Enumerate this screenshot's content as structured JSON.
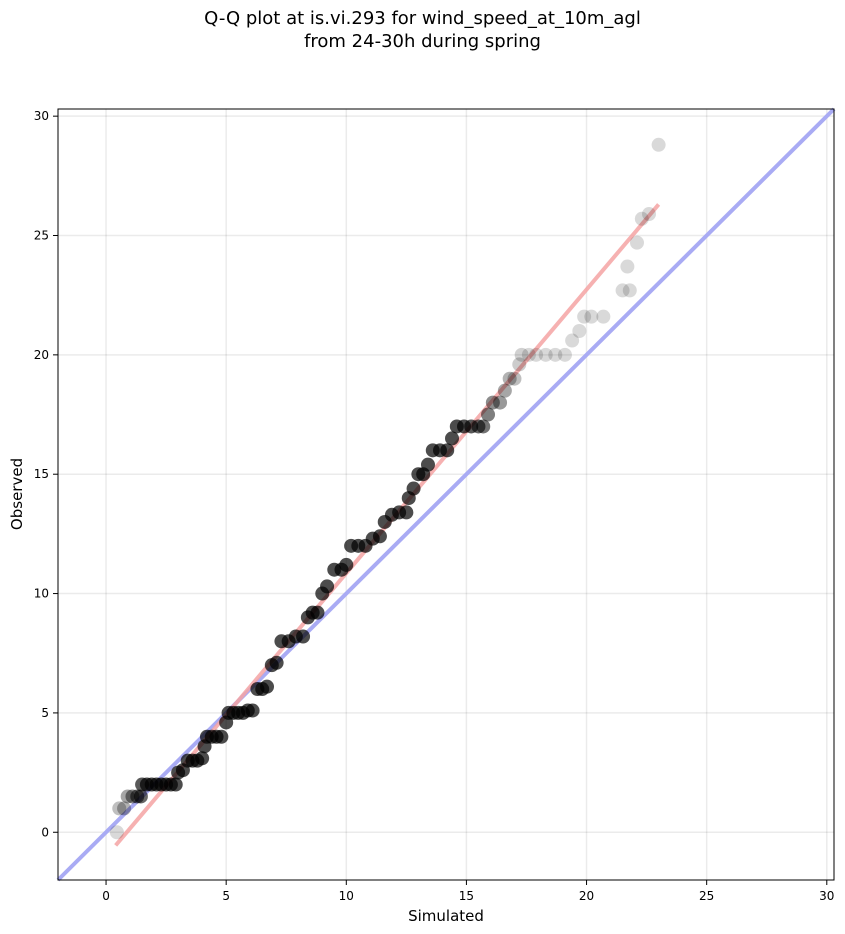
{
  "chart_data": {
    "type": "scatter",
    "title": "Q-Q plot at is.vi.293 for wind_speed_at_10m_agl",
    "subtitle": "from 24-30h during spring",
    "xlabel": "Simulated",
    "ylabel": "Observed",
    "xlim": [
      -2,
      30.3
    ],
    "ylim": [
      -2,
      30.3
    ],
    "xticks": [
      0,
      5,
      10,
      15,
      20,
      25,
      30
    ],
    "yticks": [
      0,
      5,
      10,
      15,
      20,
      25,
      30
    ],
    "grid": true,
    "points_color": "#000000",
    "quantiles": [
      {
        "x": 0.45,
        "y": 0.0,
        "a": 0.15
      },
      {
        "x": 0.55,
        "y": 1.0,
        "a": 0.25
      },
      {
        "x": 0.75,
        "y": 1.0,
        "a": 0.3
      },
      {
        "x": 0.9,
        "y": 1.5,
        "a": 0.35
      },
      {
        "x": 1.1,
        "y": 1.5,
        "a": 0.45
      },
      {
        "x": 1.3,
        "y": 1.5,
        "a": 0.55
      },
      {
        "x": 1.45,
        "y": 1.5,
        "a": 0.6
      },
      {
        "x": 1.5,
        "y": 2.0,
        "a": 0.65
      },
      {
        "x": 1.7,
        "y": 2.0,
        "a": 0.7
      },
      {
        "x": 1.9,
        "y": 2.0,
        "a": 0.7
      },
      {
        "x": 2.1,
        "y": 2.0,
        "a": 0.7
      },
      {
        "x": 2.3,
        "y": 2.0,
        "a": 0.7
      },
      {
        "x": 2.5,
        "y": 2.0,
        "a": 0.7
      },
      {
        "x": 2.7,
        "y": 2.0,
        "a": 0.7
      },
      {
        "x": 2.9,
        "y": 2.0,
        "a": 0.7
      },
      {
        "x": 3.0,
        "y": 2.5,
        "a": 0.7
      },
      {
        "x": 3.2,
        "y": 2.6,
        "a": 0.7
      },
      {
        "x": 3.4,
        "y": 3.0,
        "a": 0.7
      },
      {
        "x": 3.6,
        "y": 3.0,
        "a": 0.7
      },
      {
        "x": 3.8,
        "y": 3.0,
        "a": 0.7
      },
      {
        "x": 4.0,
        "y": 3.1,
        "a": 0.7
      },
      {
        "x": 4.1,
        "y": 3.6,
        "a": 0.7
      },
      {
        "x": 4.2,
        "y": 4.0,
        "a": 0.7
      },
      {
        "x": 4.4,
        "y": 4.0,
        "a": 0.7
      },
      {
        "x": 4.6,
        "y": 4.0,
        "a": 0.7
      },
      {
        "x": 4.8,
        "y": 4.0,
        "a": 0.7
      },
      {
        "x": 5.0,
        "y": 4.6,
        "a": 0.7
      },
      {
        "x": 5.1,
        "y": 5.0,
        "a": 0.7
      },
      {
        "x": 5.3,
        "y": 5.0,
        "a": 0.7
      },
      {
        "x": 5.5,
        "y": 5.0,
        "a": 0.7
      },
      {
        "x": 5.7,
        "y": 5.0,
        "a": 0.7
      },
      {
        "x": 5.9,
        "y": 5.1,
        "a": 0.7
      },
      {
        "x": 6.1,
        "y": 5.1,
        "a": 0.7
      },
      {
        "x": 6.3,
        "y": 6.0,
        "a": 0.7
      },
      {
        "x": 6.5,
        "y": 6.0,
        "a": 0.7
      },
      {
        "x": 6.7,
        "y": 6.1,
        "a": 0.7
      },
      {
        "x": 6.9,
        "y": 7.0,
        "a": 0.7
      },
      {
        "x": 7.1,
        "y": 7.1,
        "a": 0.7
      },
      {
        "x": 7.3,
        "y": 8.0,
        "a": 0.7
      },
      {
        "x": 7.6,
        "y": 8.0,
        "a": 0.7
      },
      {
        "x": 7.9,
        "y": 8.2,
        "a": 0.7
      },
      {
        "x": 8.2,
        "y": 8.2,
        "a": 0.7
      },
      {
        "x": 8.4,
        "y": 9.0,
        "a": 0.7
      },
      {
        "x": 8.6,
        "y": 9.2,
        "a": 0.7
      },
      {
        "x": 8.8,
        "y": 9.2,
        "a": 0.7
      },
      {
        "x": 9.0,
        "y": 10.0,
        "a": 0.7
      },
      {
        "x": 9.2,
        "y": 10.3,
        "a": 0.7
      },
      {
        "x": 9.5,
        "y": 11.0,
        "a": 0.7
      },
      {
        "x": 9.8,
        "y": 11.0,
        "a": 0.7
      },
      {
        "x": 10.0,
        "y": 11.2,
        "a": 0.7
      },
      {
        "x": 10.2,
        "y": 12.0,
        "a": 0.7
      },
      {
        "x": 10.5,
        "y": 12.0,
        "a": 0.7
      },
      {
        "x": 10.8,
        "y": 12.0,
        "a": 0.7
      },
      {
        "x": 11.1,
        "y": 12.3,
        "a": 0.7
      },
      {
        "x": 11.4,
        "y": 12.4,
        "a": 0.7
      },
      {
        "x": 11.6,
        "y": 13.0,
        "a": 0.7
      },
      {
        "x": 11.9,
        "y": 13.3,
        "a": 0.7
      },
      {
        "x": 12.2,
        "y": 13.4,
        "a": 0.7
      },
      {
        "x": 12.5,
        "y": 13.4,
        "a": 0.7
      },
      {
        "x": 12.6,
        "y": 14.0,
        "a": 0.7
      },
      {
        "x": 12.8,
        "y": 14.4,
        "a": 0.7
      },
      {
        "x": 13.0,
        "y": 15.0,
        "a": 0.7
      },
      {
        "x": 13.2,
        "y": 15.0,
        "a": 0.7
      },
      {
        "x": 13.4,
        "y": 15.4,
        "a": 0.7
      },
      {
        "x": 13.6,
        "y": 16.0,
        "a": 0.7
      },
      {
        "x": 13.9,
        "y": 16.0,
        "a": 0.7
      },
      {
        "x": 14.2,
        "y": 16.0,
        "a": 0.7
      },
      {
        "x": 14.4,
        "y": 16.5,
        "a": 0.7
      },
      {
        "x": 14.6,
        "y": 17.0,
        "a": 0.7
      },
      {
        "x": 14.9,
        "y": 17.0,
        "a": 0.7
      },
      {
        "x": 15.2,
        "y": 17.0,
        "a": 0.65
      },
      {
        "x": 15.5,
        "y": 17.0,
        "a": 0.6
      },
      {
        "x": 15.7,
        "y": 17.0,
        "a": 0.55
      },
      {
        "x": 15.9,
        "y": 17.5,
        "a": 0.5
      },
      {
        "x": 16.1,
        "y": 18.0,
        "a": 0.45
      },
      {
        "x": 16.4,
        "y": 18.0,
        "a": 0.4
      },
      {
        "x": 16.6,
        "y": 18.5,
        "a": 0.35
      },
      {
        "x": 16.8,
        "y": 19.0,
        "a": 0.3
      },
      {
        "x": 17.0,
        "y": 19.0,
        "a": 0.25
      },
      {
        "x": 17.2,
        "y": 19.6,
        "a": 0.2
      },
      {
        "x": 17.3,
        "y": 20.0,
        "a": 0.18
      },
      {
        "x": 17.6,
        "y": 20.0,
        "a": 0.15
      },
      {
        "x": 17.9,
        "y": 20.0,
        "a": 0.15
      },
      {
        "x": 18.3,
        "y": 20.0,
        "a": 0.15
      },
      {
        "x": 18.7,
        "y": 20.0,
        "a": 0.15
      },
      {
        "x": 19.1,
        "y": 20.0,
        "a": 0.15
      },
      {
        "x": 19.4,
        "y": 20.6,
        "a": 0.15
      },
      {
        "x": 19.7,
        "y": 21.0,
        "a": 0.15
      },
      {
        "x": 19.9,
        "y": 21.6,
        "a": 0.15
      },
      {
        "x": 20.2,
        "y": 21.6,
        "a": 0.15
      },
      {
        "x": 20.7,
        "y": 21.6,
        "a": 0.15
      },
      {
        "x": 21.5,
        "y": 22.7,
        "a": 0.15
      },
      {
        "x": 21.8,
        "y": 22.7,
        "a": 0.15
      },
      {
        "x": 21.7,
        "y": 23.7,
        "a": 0.15
      },
      {
        "x": 22.1,
        "y": 24.7,
        "a": 0.15
      },
      {
        "x": 22.3,
        "y": 25.7,
        "a": 0.15
      },
      {
        "x": 22.6,
        "y": 25.9,
        "a": 0.15
      },
      {
        "x": 23.0,
        "y": 28.8,
        "a": 0.15
      }
    ],
    "fit_line": {
      "color": "#f4a3a3",
      "x": [
        0.4,
        23.0
      ],
      "y": [
        -0.55,
        26.3
      ]
    },
    "identity_line": {
      "color": "#a9abf4",
      "x": [
        -2,
        30.3
      ],
      "y": [
        -2,
        30.3
      ]
    }
  }
}
